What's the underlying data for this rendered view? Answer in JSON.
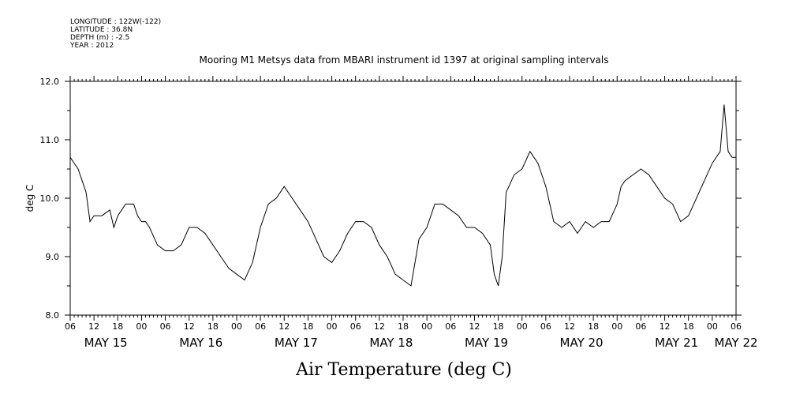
{
  "meta": {
    "longitude": "LONGITUDE : 122W(-122)",
    "latitude": "LATITUDE : 36.8N",
    "depth": "DEPTH (m) : -2.5",
    "year": "YEAR : 2012"
  },
  "chart_data": {
    "type": "line",
    "title": "Mooring M1 Metsys data from MBARI instrument id 1397 at original sampling intervals",
    "xlabel": "Air Temperature (deg C)",
    "ylabel": "deg C",
    "ylim": [
      8.0,
      12.0
    ],
    "yticks": [
      "8.0",
      "9.0",
      "10.0",
      "11.0",
      "12.0"
    ],
    "x_unit": "hours since MAY 15 06:00",
    "xlim": [
      0,
      168
    ],
    "xtick_labels": [
      "06",
      "12",
      "18",
      "00",
      "06",
      "12",
      "18",
      "00",
      "06",
      "12",
      "18",
      "00",
      "06",
      "12",
      "18",
      "00",
      "06",
      "12",
      "18",
      "00",
      "06",
      "12",
      "18",
      "00",
      "06",
      "12",
      "18",
      "00",
      "06"
    ],
    "day_labels": [
      "MAY 15",
      "MAY 16",
      "MAY 17",
      "MAY 18",
      "MAY 19",
      "MAY 20",
      "MAY 21",
      "MAY 22"
    ],
    "day_label_hours": [
      9,
      33,
      57,
      81,
      105,
      129,
      153,
      168
    ],
    "grid": false,
    "series": [
      {
        "x": [
          0,
          1,
          2,
          3,
          4,
          5,
          6,
          7,
          8,
          10,
          11,
          12,
          13,
          14,
          15,
          16,
          17,
          18,
          19,
          20,
          22,
          24,
          26,
          28,
          30,
          32,
          34,
          36,
          38,
          40,
          42,
          44,
          46,
          48,
          50,
          52,
          54,
          55,
          56,
          58,
          60,
          62,
          64,
          66,
          68,
          70,
          72,
          74,
          76,
          78,
          80,
          82,
          84,
          86,
          88,
          90,
          92,
          94,
          96,
          98,
          100,
          102,
          104,
          106,
          107,
          108,
          109,
          110,
          112,
          114,
          116,
          118,
          120,
          122,
          124,
          126,
          128,
          129,
          130,
          132,
          134,
          136,
          138,
          139,
          140,
          142,
          144,
          146,
          148,
          150,
          152,
          154,
          156,
          158,
          160,
          162,
          164,
          165,
          166,
          167,
          168
        ],
        "y": [
          10.7,
          10.6,
          10.5,
          10.3,
          10.1,
          9.6,
          9.7,
          9.7,
          9.7,
          9.8,
          9.5,
          9.7,
          9.8,
          9.9,
          9.9,
          9.9,
          9.7,
          9.6,
          9.6,
          9.5,
          9.2,
          9.1,
          9.1,
          9.2,
          9.5,
          9.5,
          9.4,
          9.2,
          9.0,
          8.8,
          8.7,
          8.6,
          8.9,
          9.5,
          9.9,
          10.0,
          10.2,
          10.1,
          10.0,
          9.8,
          9.6,
          9.3,
          9.0,
          8.9,
          9.1,
          9.4,
          9.6,
          9.6,
          9.5,
          9.2,
          9.0,
          8.7,
          8.6,
          8.5,
          9.3,
          9.5,
          9.9,
          9.9,
          9.8,
          9.7,
          9.5,
          9.5,
          9.4,
          9.2,
          8.7,
          8.5,
          9.0,
          10.1,
          10.4,
          10.5,
          10.8,
          10.6,
          10.2,
          9.6,
          9.5,
          9.6,
          9.4,
          9.5,
          9.6,
          9.5,
          9.6,
          9.6,
          9.9,
          10.2,
          10.3,
          10.4,
          10.5,
          10.4,
          10.2,
          10.0,
          9.9,
          9.6,
          9.7,
          10.0,
          10.3,
          10.6,
          10.8,
          11.6,
          10.8,
          10.7,
          10.7
        ]
      }
    ]
  }
}
